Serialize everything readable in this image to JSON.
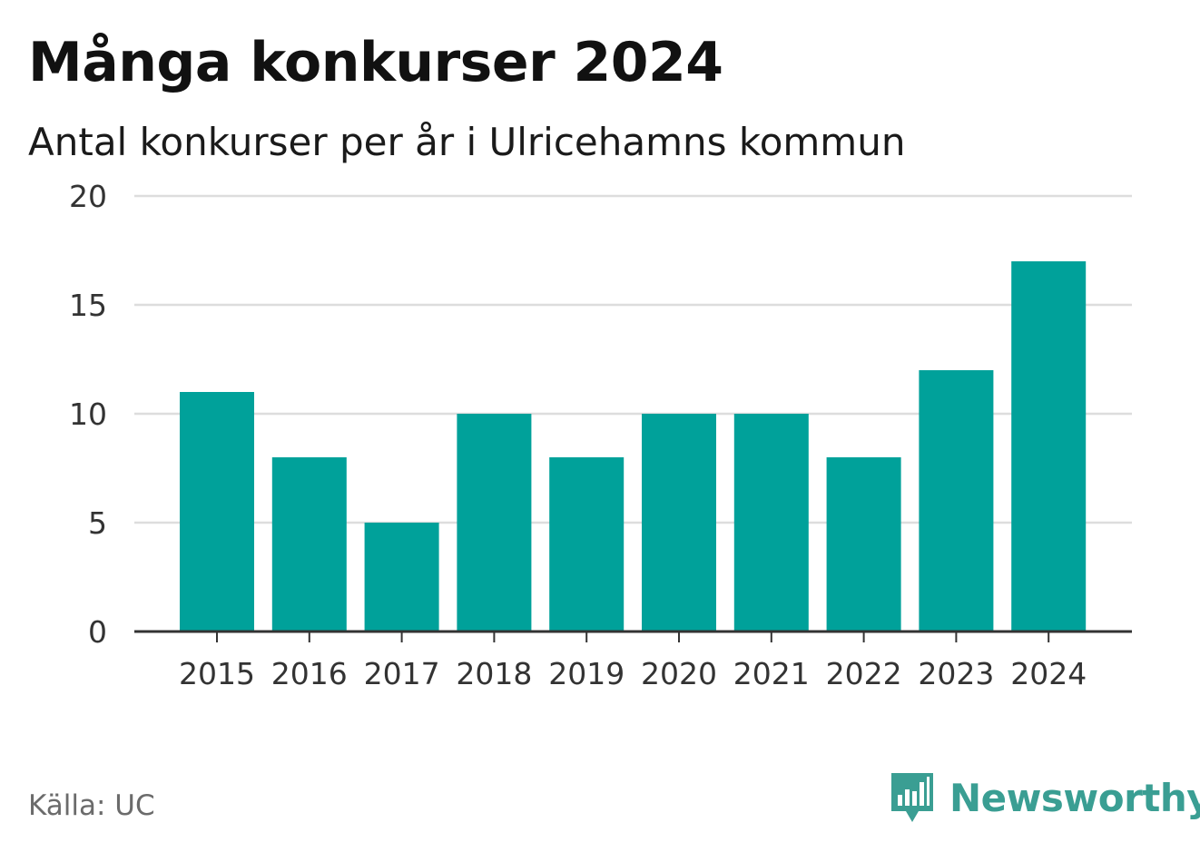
{
  "header": {
    "title": "Många konkurser 2024",
    "subtitle": "Antal konkurser per år i Ulricehamns kommun"
  },
  "footer": {
    "source": "Källa: UC",
    "brand": "Newsworthy",
    "brand_icon": "newsworthy-logo-icon"
  },
  "colors": {
    "bar": "#00a19a",
    "grid": "#dddddd",
    "axis": "#333333",
    "brand": "#3a9e93"
  },
  "chart_data": {
    "type": "bar",
    "categories": [
      "2015",
      "2016",
      "2017",
      "2018",
      "2019",
      "2020",
      "2021",
      "2022",
      "2023",
      "2024"
    ],
    "values": [
      11,
      8,
      5,
      10,
      8,
      10,
      10,
      8,
      12,
      17
    ],
    "ylim": [
      0,
      20
    ],
    "yticks": [
      0,
      5,
      10,
      15,
      20
    ],
    "grid": true,
    "legend": "none"
  }
}
